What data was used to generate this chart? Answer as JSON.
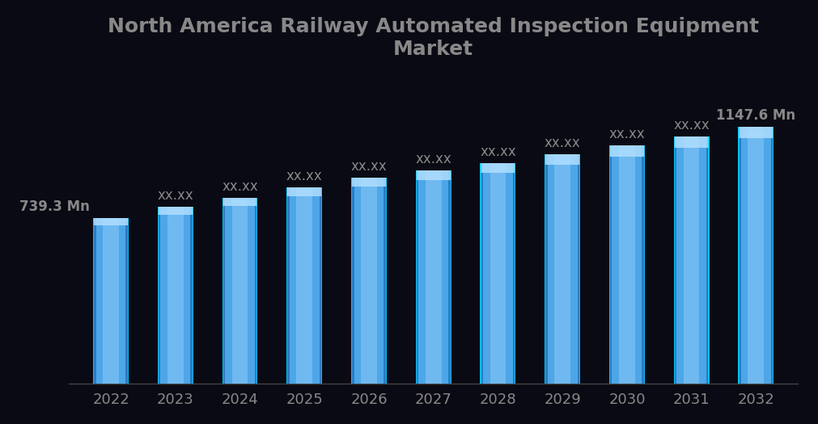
{
  "title": "North America Railway Automated Inspection Equipment\nMarket",
  "years": [
    2022,
    2023,
    2024,
    2025,
    2026,
    2027,
    2028,
    2029,
    2030,
    2031,
    2032
  ],
  "values": [
    739.3,
    790,
    830,
    878,
    922,
    952,
    985,
    1025,
    1063,
    1103,
    1147.6
  ],
  "bar_color_main": "#4DA6E8",
  "bar_color_light": "#B0DEFF",
  "bar_color_dark": "#1A6BB5",
  "bar_color_edge": "#00CFFF",
  "background_color": "#0A0A14",
  "text_color": "#888888",
  "title_color": "#888888",
  "tick_color": "#888888",
  "title_fontsize": 18,
  "tick_fontsize": 13,
  "annotation_fontsize": 12,
  "first_label": "739.3 Mn",
  "last_label": "1147.6 Mn",
  "mid_label": "xx.xx",
  "ylim": [
    0,
    1380
  ],
  "bar_width": 0.55
}
